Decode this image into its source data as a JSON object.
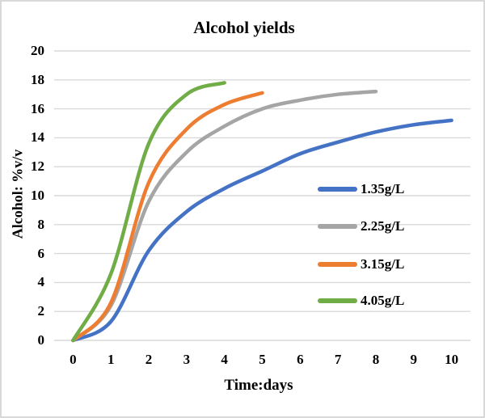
{
  "chart_data": {
    "type": "line",
    "title": "Alcohol yields",
    "xlabel": "Time:days",
    "ylabel": "Alcohol: %v/v",
    "ylim": [
      0,
      20
    ],
    "yticks": [
      0,
      2,
      4,
      6,
      8,
      10,
      12,
      14,
      16,
      18,
      20
    ],
    "xticks": [
      0,
      1,
      2,
      3,
      4,
      5,
      6,
      7,
      8,
      9,
      10
    ],
    "grid": "horizontal",
    "gridline_color": "#d9d9d9",
    "legend_position": "inside-right",
    "series": [
      {
        "name": "1.35g/L",
        "color": "#4472C4",
        "x": [
          0,
          1,
          2,
          3,
          4,
          5,
          6,
          7,
          8,
          9,
          10
        ],
        "values": [
          0,
          1.3,
          6.2,
          8.9,
          10.5,
          11.7,
          12.9,
          13.7,
          14.4,
          14.9,
          15.2
        ]
      },
      {
        "name": "2.25g/L",
        "color": "#A5A5A5",
        "x": [
          0,
          1,
          2,
          3,
          4,
          5,
          6,
          7,
          8
        ],
        "values": [
          0,
          2.4,
          9.6,
          13.0,
          14.8,
          16.0,
          16.6,
          17.0,
          17.2
        ]
      },
      {
        "name": "3.15g/L",
        "color": "#ED7D31",
        "x": [
          0,
          1,
          2,
          3,
          4,
          5
        ],
        "values": [
          0,
          2.6,
          10.9,
          14.6,
          16.3,
          17.1
        ]
      },
      {
        "name": "4.05g/L",
        "color": "#70AD47",
        "x": [
          0,
          1,
          2,
          3,
          4
        ],
        "values": [
          0,
          4.6,
          13.6,
          17.0,
          17.8
        ]
      }
    ]
  }
}
